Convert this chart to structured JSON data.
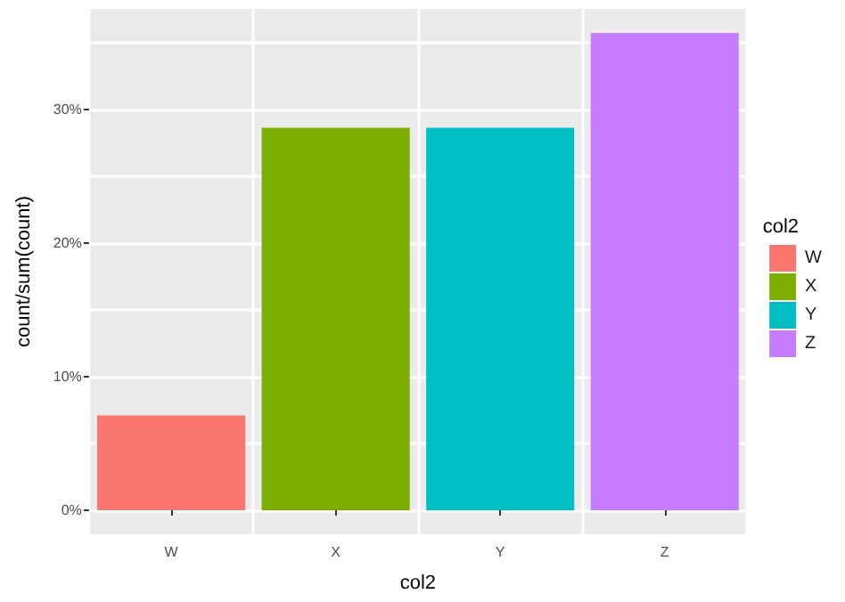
{
  "chart_data": {
    "type": "bar",
    "xlabel": "col2",
    "ylabel": "count/sum(count)",
    "legend_title": "col2",
    "categories": [
      "W",
      "X",
      "Y",
      "Z"
    ],
    "series": [
      {
        "name": "W",
        "color": "#f8766d",
        "values": [
          7.1,
          null,
          null,
          null
        ]
      },
      {
        "name": "X",
        "color": "#7cae00",
        "values": [
          null,
          28.6,
          null,
          null
        ]
      },
      {
        "name": "Y",
        "color": "#00bfc4",
        "values": [
          null,
          null,
          28.6,
          null
        ]
      },
      {
        "name": "Z",
        "color": "#c77cff",
        "values": [
          null,
          null,
          null,
          35.7
        ]
      }
    ],
    "ylim": [
      -1.8,
      37.5
    ],
    "yticks": [
      {
        "value": 0,
        "label": "0%"
      },
      {
        "value": 5,
        "label": null
      },
      {
        "value": 10,
        "label": "10%"
      },
      {
        "value": 15,
        "label": null
      },
      {
        "value": 20,
        "label": "20%"
      },
      {
        "value": 25,
        "label": null
      },
      {
        "value": 30,
        "label": "30%"
      },
      {
        "value": 35,
        "label": null
      }
    ],
    "grid": true,
    "legend": "right"
  }
}
